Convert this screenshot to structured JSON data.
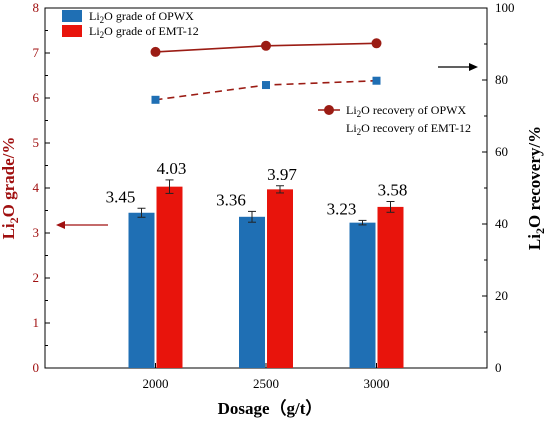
{
  "chart_data": {
    "type": "bar+line",
    "categories": [
      "2000",
      "2500",
      "3000"
    ],
    "xlabel": "Dosage（g/t）",
    "ylabel_left": "Li2O grade/%",
    "ylabel_right": "Li2O recovery/%",
    "ylim_left": [
      0,
      8
    ],
    "yticks_left": [
      "0",
      "1",
      "2",
      "3",
      "4",
      "5",
      "6",
      "7",
      "8"
    ],
    "ylim_right": [
      0,
      100
    ],
    "yticks_right": [
      "0",
      "20",
      "40",
      "60",
      "80",
      "100"
    ],
    "bar_series": [
      {
        "name": "Li2O grade of OPWX",
        "color": "#1f6fb4",
        "values": [
          3.45,
          3.36,
          3.23
        ],
        "errors": [
          0.1,
          0.12,
          0.05
        ],
        "labels": [
          "3.45",
          "3.36",
          "3.23"
        ]
      },
      {
        "name": "Li2O grade of EMT-12",
        "color": "#e8140c",
        "values": [
          4.03,
          3.97,
          3.58
        ],
        "errors": [
          0.15,
          0.08,
          0.12
        ],
        "labels": [
          "4.03",
          "3.97",
          "3.58"
        ]
      }
    ],
    "line_series": [
      {
        "name": "Li2O recovery of OPWX",
        "color": "#9b1c14",
        "style": "solid",
        "marker": "circle",
        "values": [
          87.8,
          89.5,
          90.2
        ]
      },
      {
        "name": "Li2O recovery of EMT-12",
        "color": "#9b1c14",
        "style": "dashed",
        "marker": "square",
        "marker_color": "#1f6fb4",
        "values": [
          74.5,
          78.6,
          79.8
        ]
      }
    ],
    "legend_placement": [
      "top-left",
      "right"
    ],
    "grid": false
  }
}
